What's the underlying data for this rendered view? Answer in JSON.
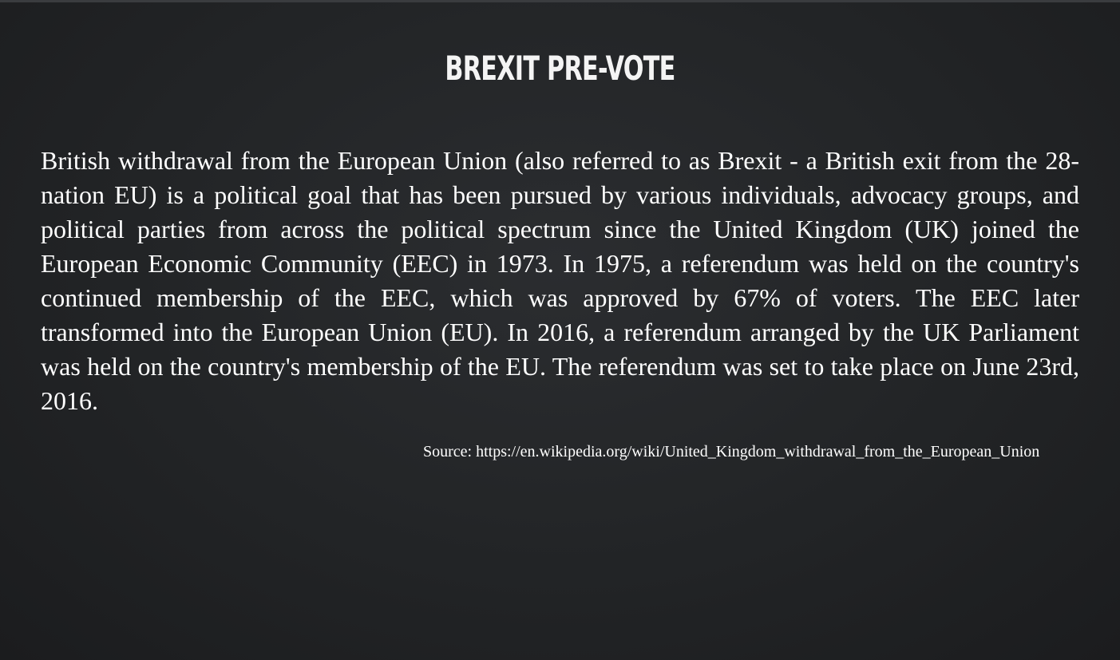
{
  "slide": {
    "title": "BREXIT PRE-VOTE",
    "body": "British withdrawal from the European Union (also referred to as Brexit - a British exit from the 28-nation EU) is a political goal that has been pursued by various individuals, advocacy groups, and political parties from across the political spectrum since the United Kingdom (UK) joined the European Economic Community (EEC) in 1973. In 1975, a referendum was held on the country's continued membership of the EEC, which was approved by 67% of voters. The EEC later transformed into the European Union (EU). In 2016, a referendum arranged by the UK Parliament was held on the country's membership of the EU. The referendum was set to take place on June 23rd, 2016.",
    "source": "Source: https://en.wikipedia.org/wiki/United_Kingdom_withdrawal_from_the_European_Union"
  },
  "colors": {
    "background": "#222426",
    "text": "#ffffff"
  }
}
